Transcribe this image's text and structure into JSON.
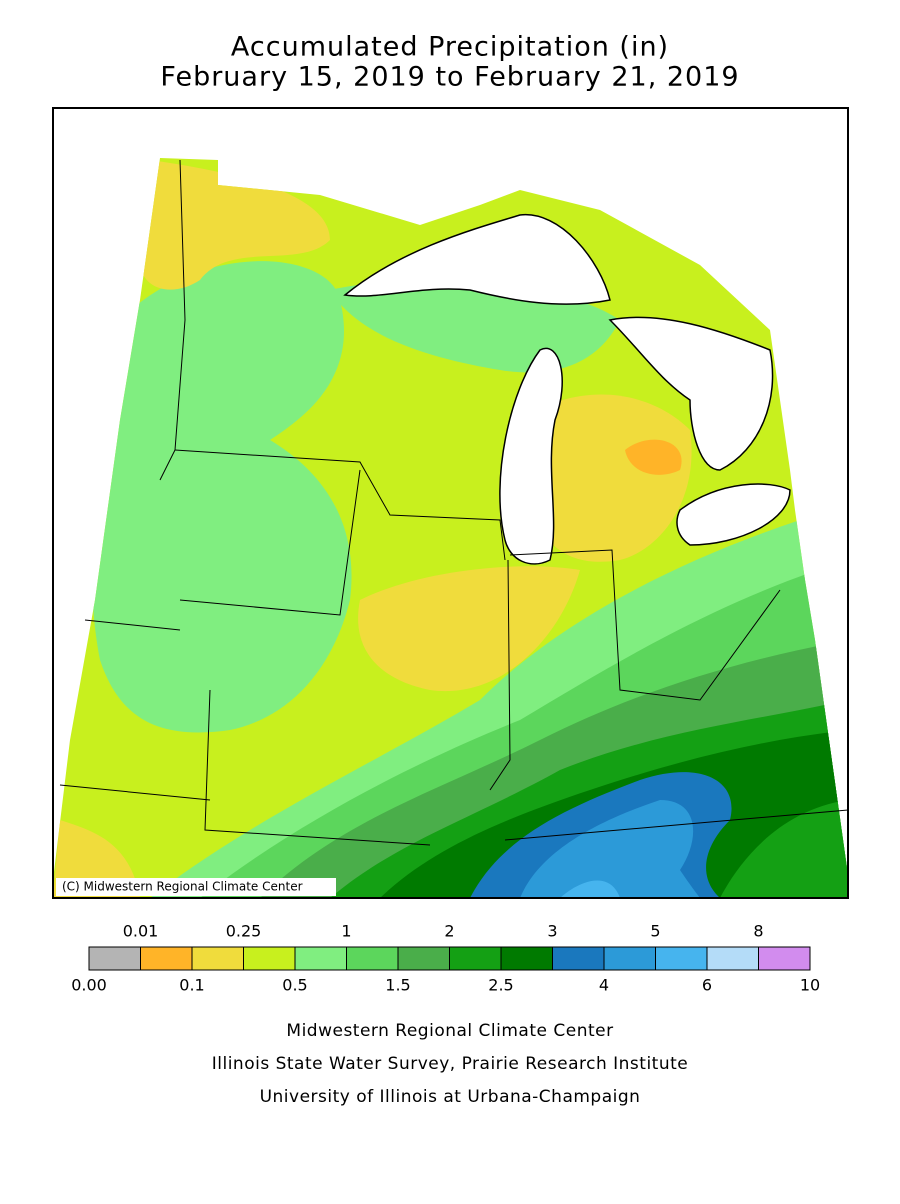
{
  "title": [
    "Accumulated Precipitation (in)",
    "February 15, 2019 to February 21, 2019"
  ],
  "map": {
    "credit": "(C) Midwestern Regional Climate Center"
  },
  "legend": {
    "colors": [
      "#b4b4b4",
      "#ffb428",
      "#f0dc3c",
      "#c8f01e",
      "#80ee80",
      "#5cd65c",
      "#4aae4a",
      "#14a014",
      "#007a00",
      "#1a78be",
      "#2c9ad8",
      "#46b4ee",
      "#b4dcf8",
      "#d28cee"
    ],
    "bounds": [
      {
        "value": 0,
        "label": "0.00"
      },
      0.01,
      0.1,
      0.25,
      0.5,
      1,
      1.5,
      2,
      2.5,
      3,
      4,
      5,
      6,
      8,
      10
    ]
  },
  "footer": [
    "Midwestern Regional Climate Center",
    "Illinois State Water Survey, Prairie Research Institute",
    "University of Illinois at Urbana-Champaign"
  ]
}
